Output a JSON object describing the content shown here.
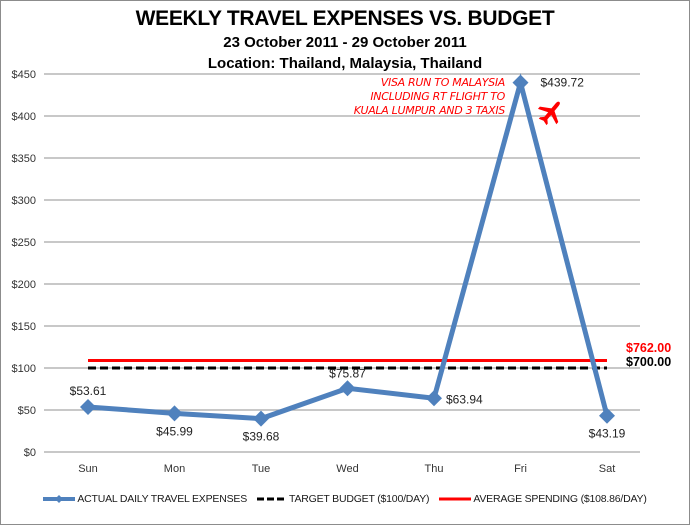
{
  "header": {
    "title": "WEEKLY TRAVEL EXPENSES VS. BUDGET",
    "date_range": "23 October 2011 - 29 October 2011",
    "location": "Location: Thailand, Malaysia, Thailand"
  },
  "annotation": {
    "lines": [
      "Visa Run to Malaysia",
      "Including RT flight to",
      "Kuala Lumpur and 3 taxis"
    ],
    "icon": "airplane-icon",
    "color": "#ff0000"
  },
  "end_labels": {
    "average_total": "$762.00",
    "budget_total": "$700.00"
  },
  "legend": {
    "actual": "ACTUAL DAILY TRAVEL EXPENSES",
    "budget": "TARGET BUDGET ($100/DAY)",
    "average": "AVERAGE SPENDING ($108.86/DAY)"
  },
  "colors": {
    "actual": "#4f81bd",
    "budget": "#000000",
    "average": "#ff0000",
    "grid": "#a6a6a6"
  },
  "chart_data": {
    "type": "line",
    "title": "WEEKLY TRAVEL EXPENSES VS. BUDGET",
    "subtitle": [
      "23 October 2011 - 29 October 2011",
      "Location: Thailand, Malaysia, Thailand"
    ],
    "xlabel": "",
    "ylabel": "",
    "categories": [
      "Sun",
      "Mon",
      "Tue",
      "Wed",
      "Thu",
      "Fri",
      "Sat"
    ],
    "yticks": [
      "$0",
      "$50",
      "$100",
      "$150",
      "$200",
      "$250",
      "$300",
      "$350",
      "$400",
      "$450"
    ],
    "ylim": [
      0,
      450
    ],
    "grid": true,
    "legend_position": "bottom",
    "series": [
      {
        "name": "ACTUAL DAILY TRAVEL EXPENSES",
        "values": [
          53.61,
          45.99,
          39.68,
          75.87,
          63.94,
          439.72,
          43.19
        ],
        "labels": [
          "$53.61",
          "$45.99",
          "$39.68",
          "$75.87",
          "$63.94",
          "$439.72",
          "$43.19"
        ],
        "style": "line-diamond-markers",
        "color": "#4f81bd"
      },
      {
        "name": "TARGET BUDGET ($100/DAY)",
        "values": [
          100,
          100,
          100,
          100,
          100,
          100,
          100
        ],
        "style": "dashed",
        "color": "#000000",
        "end_label": "$700.00"
      },
      {
        "name": "AVERAGE SPENDING ($108.86/DAY)",
        "values": [
          108.86,
          108.86,
          108.86,
          108.86,
          108.86,
          108.86,
          108.86
        ],
        "style": "solid",
        "color": "#ff0000",
        "end_label": "$762.00"
      }
    ],
    "annotations": [
      {
        "text": "Visa Run to Malaysia Including RT flight to Kuala Lumpur and 3 taxis",
        "near": "Fri",
        "color": "#ff0000"
      }
    ]
  }
}
